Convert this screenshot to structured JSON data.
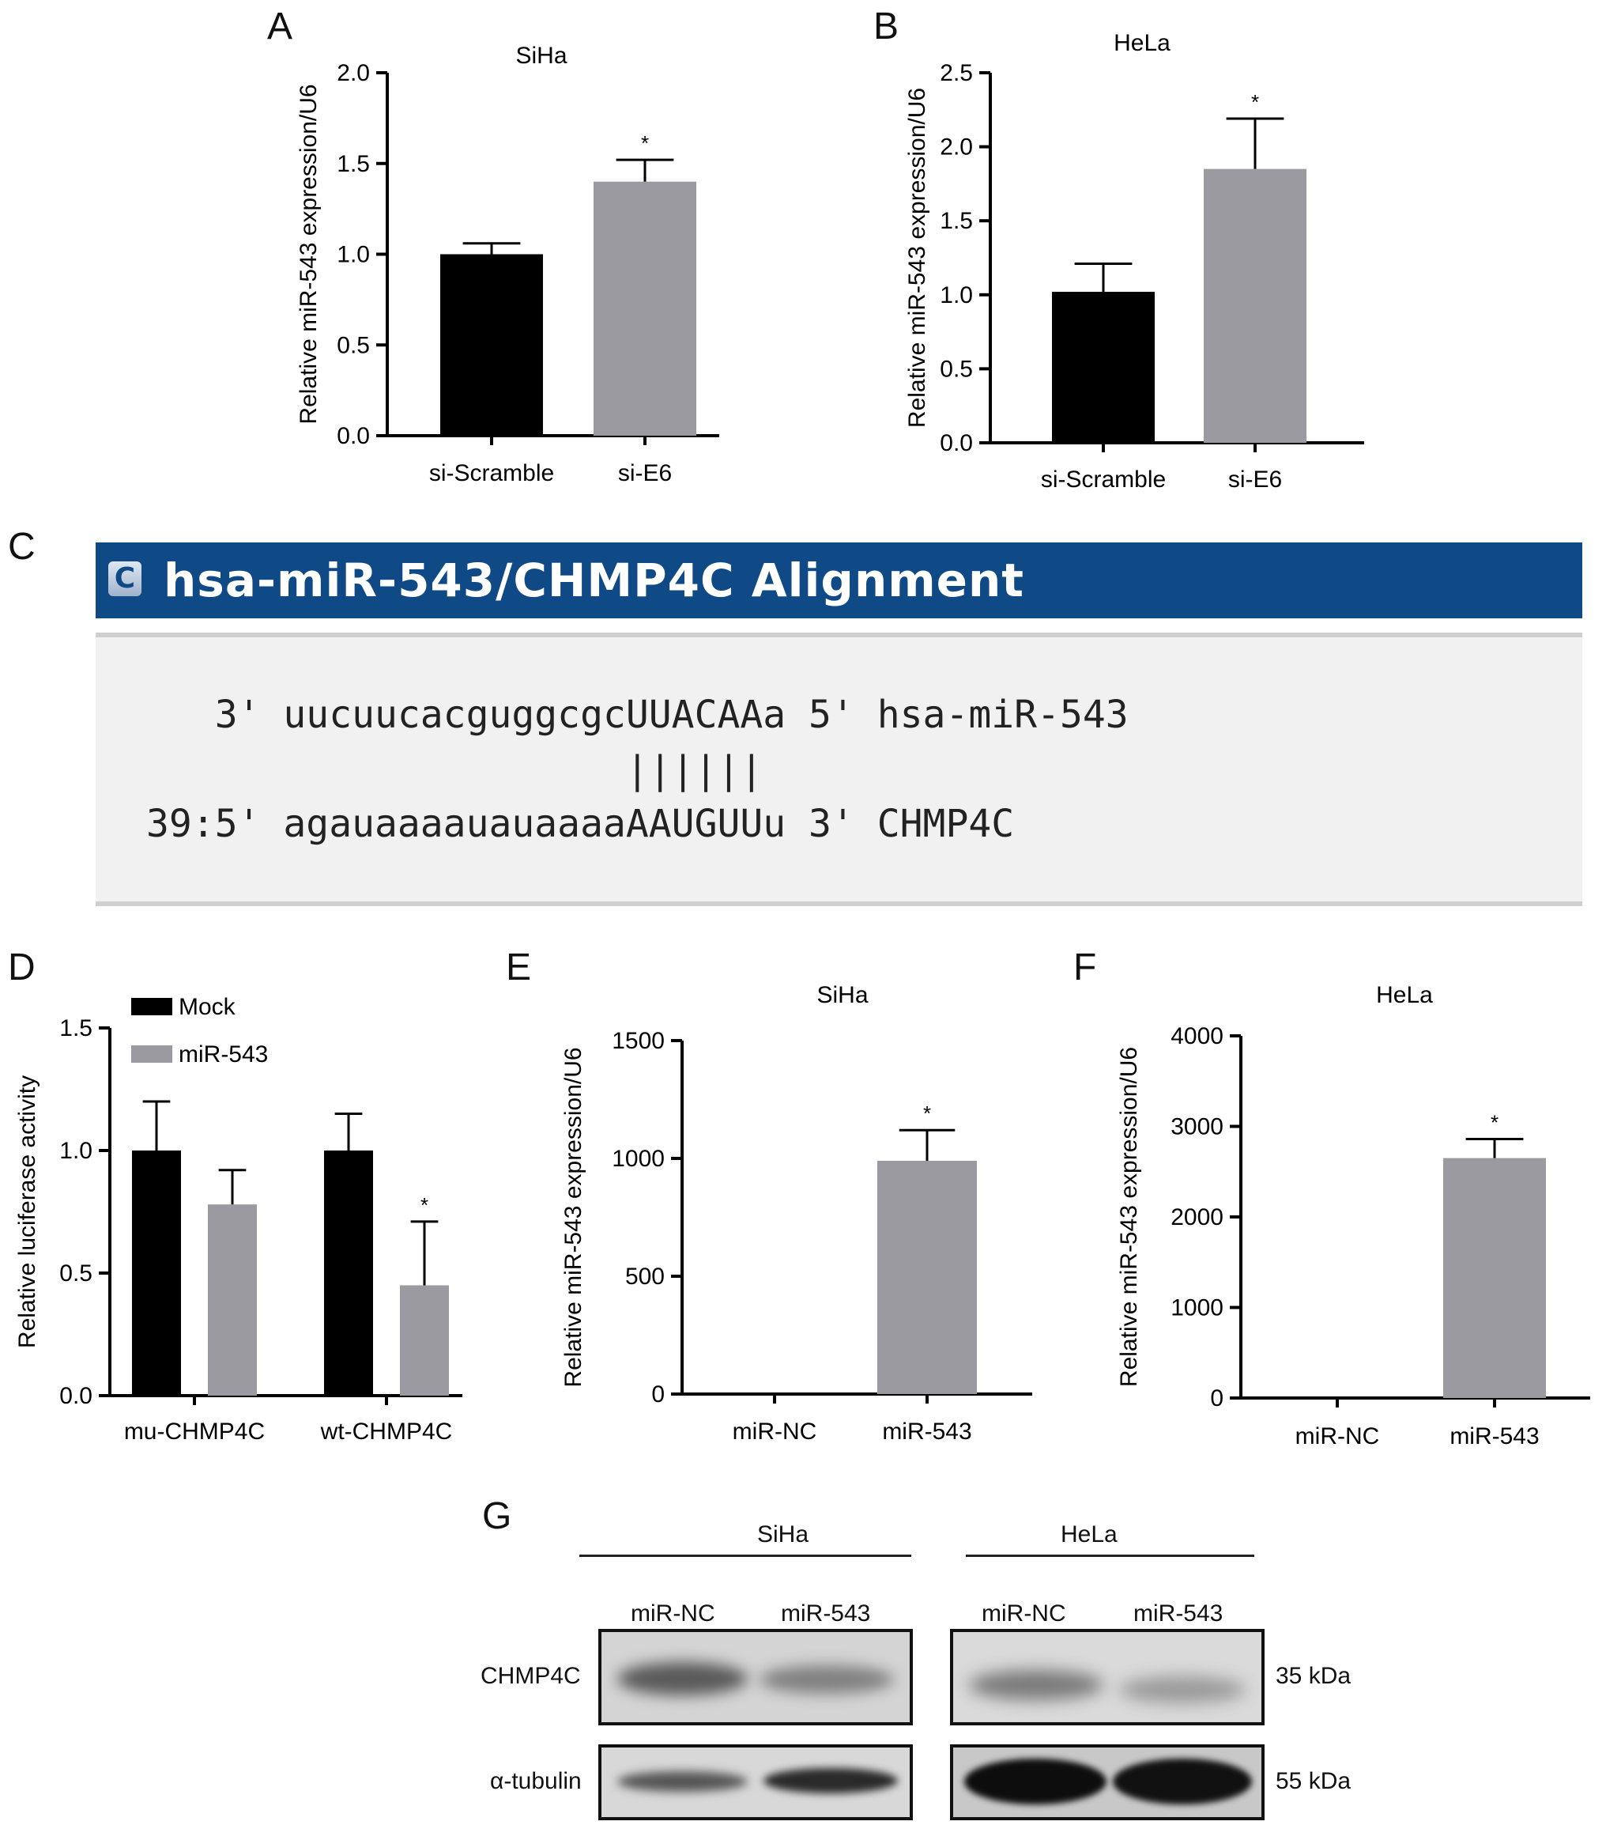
{
  "panel_letters": [
    "A",
    "B",
    "C",
    "D",
    "E",
    "F",
    "G"
  ],
  "colors": {
    "black_bar": "#000000",
    "gray_bar": "#9a9aa0",
    "alignment_header": "#0f4a86"
  },
  "chart_data": [
    {
      "panel": "A",
      "type": "bar",
      "title": "SiHa",
      "categories": [
        "si-Scramble",
        "si-E6"
      ],
      "values": [
        1.0,
        1.4
      ],
      "errors": [
        0.06,
        0.12
      ],
      "significance": [
        "",
        "*"
      ],
      "ylabel": "Relative miR-543 expression/U6",
      "ylim": [
        0,
        2.0
      ],
      "yticks": [
        "0.0",
        "0.5",
        "1.0",
        "1.5",
        "2.0"
      ]
    },
    {
      "panel": "B",
      "type": "bar",
      "title": "HeLa",
      "categories": [
        "si-Scramble",
        "si-E6"
      ],
      "values": [
        1.02,
        1.85
      ],
      "errors": [
        0.19,
        0.34
      ],
      "significance": [
        "",
        "*"
      ],
      "ylabel": "Relative miR-543 expression/U6",
      "ylim": [
        0,
        2.5
      ],
      "yticks": [
        "0.0",
        "0.5",
        "1.0",
        "1.5",
        "2.0",
        "2.5"
      ]
    },
    {
      "panel": "D",
      "type": "bar",
      "title": "",
      "categories": [
        "mu-CHMP4C",
        "wt-CHMP4C"
      ],
      "series": [
        {
          "name": "Mock",
          "values": [
            1.0,
            1.0
          ],
          "errors": [
            0.2,
            0.15
          ],
          "significance": [
            "",
            ""
          ]
        },
        {
          "name": "miR-543",
          "values": [
            0.78,
            0.45
          ],
          "errors": [
            0.14,
            0.26
          ],
          "significance": [
            "",
            "*"
          ]
        }
      ],
      "legend": "top-left",
      "ylabel": "Relative luciferase activity",
      "ylim": [
        0,
        1.5
      ],
      "yticks": [
        "0.0",
        "0.5",
        "1.0",
        "1.5"
      ]
    },
    {
      "panel": "E",
      "type": "bar",
      "title": "SiHa",
      "categories": [
        "miR-NC",
        "miR-543"
      ],
      "values": [
        1,
        990
      ],
      "errors": [
        0,
        130
      ],
      "significance": [
        "",
        "*"
      ],
      "ylabel": "Relative miR-543 expression/U6",
      "ylim": [
        0,
        1500
      ],
      "yticks": [
        "0",
        "500",
        "1000",
        "1500"
      ]
    },
    {
      "panel": "F",
      "type": "bar",
      "title": "HeLa",
      "categories": [
        "miR-NC",
        "miR-543"
      ],
      "values": [
        1,
        2650
      ],
      "errors": [
        0,
        210
      ],
      "significance": [
        "",
        "*"
      ],
      "ylabel": "Relative miR-543 expression/U6",
      "ylim": [
        0,
        4000
      ],
      "yticks": [
        "0",
        "1000",
        "2000",
        "3000",
        "4000"
      ]
    }
  ],
  "alignment": {
    "icon_letter": "C",
    "title": "hsa-miR-543/CHMP4C Alignment",
    "line1": "   3' uucuucacguggcgcUUACAAa 5' hsa-miR-543",
    "line2": "                     ||||||",
    "line3": "39:5' agauaaaauauaaaaAAUGUUu 3' CHMP4C"
  },
  "western": {
    "groups": [
      "SiHa",
      "HeLa"
    ],
    "lanes": [
      "miR-NC",
      "miR-543",
      "miR-NC",
      "miR-543"
    ],
    "rows": [
      {
        "label": "CHMP4C",
        "size": "35 kDa"
      },
      {
        "label": "α-tubulin",
        "size": "55 kDa"
      }
    ]
  }
}
